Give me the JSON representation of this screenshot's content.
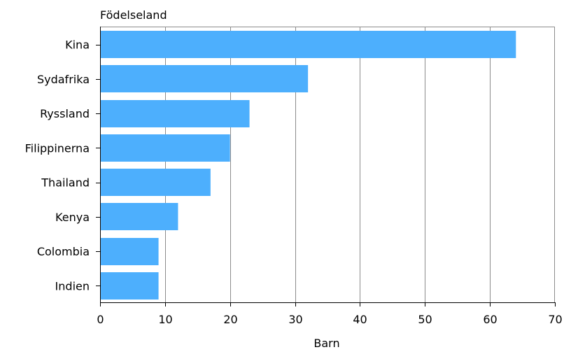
{
  "chart_data": {
    "type": "bar",
    "orientation": "horizontal",
    "categories": [
      "Kina",
      "Sydafrika",
      "Ryssland",
      "Filippinerna",
      "Thailand",
      "Kenya",
      "Colombia",
      "Indien"
    ],
    "values": [
      64,
      32,
      23,
      20,
      17,
      12,
      9,
      9
    ],
    "title": "",
    "ylabel": "Födelseland",
    "xlabel": "Barn",
    "xlim": [
      0,
      70
    ],
    "xticks": [
      0,
      10,
      20,
      30,
      40,
      50,
      60,
      70
    ],
    "xtick_labels": [
      "0",
      "10",
      "20",
      "30",
      "40",
      "50",
      "60",
      "70"
    ],
    "grid": "vertical",
    "bar_color": "#4daffd",
    "grid_color": "#8c8c8c"
  }
}
